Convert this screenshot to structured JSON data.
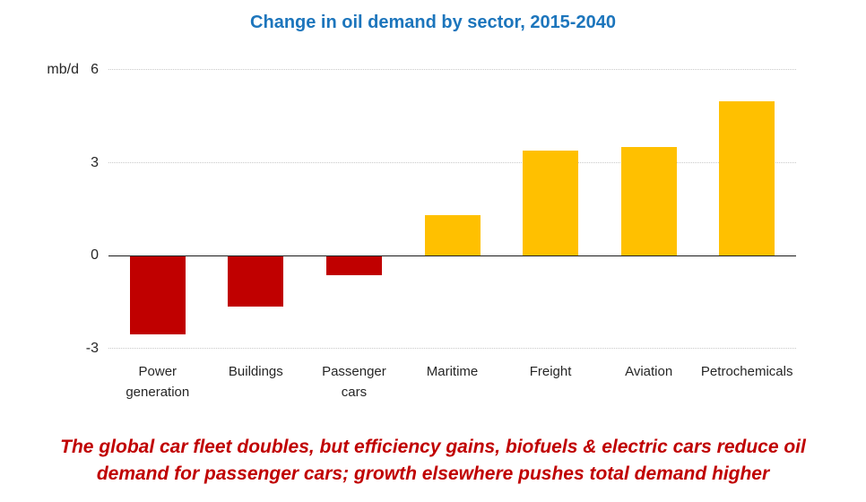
{
  "title": "Change in oil demand by sector, 2015-2040",
  "unit_label": "mb/d",
  "caption_lines": [
    "The global car fleet doubles, but efficiency gains, biofuels & electric cars reduce oil",
    "demand for passenger cars;  growth elsewhere pushes total demand higher"
  ],
  "colors": {
    "title_blue": "#1C75BC",
    "positive_bar": "#FFC000",
    "negative_bar": "#C00000",
    "caption_red": "#C00000",
    "axis_text": "#262626",
    "gridline": "#C9C9C9",
    "zero_line": "#1A1A1A"
  },
  "chart_data": {
    "type": "bar",
    "title": "Change in oil demand by sector, 2015-2040",
    "ylabel": "mb/d",
    "xlabel": "",
    "categories": [
      "Power generation",
      "Buildings",
      "Passenger cars",
      "Maritime",
      "Freight",
      "Aviation",
      "Petrochemicals"
    ],
    "category_lines": [
      [
        "Power",
        "generation"
      ],
      [
        "Buildings"
      ],
      [
        "Passenger",
        "cars"
      ],
      [
        "Maritime"
      ],
      [
        "Freight"
      ],
      [
        "Aviation"
      ],
      [
        "Petrochemicals"
      ]
    ],
    "values": [
      -2.5,
      -1.6,
      -0.6,
      1.3,
      3.4,
      3.5,
      5.0
    ],
    "yticks": [
      6,
      3,
      0,
      -3
    ],
    "ylim": [
      -3,
      6
    ],
    "grid": "horizontal dotted at 6, 3 and -3; solid axis line at 0",
    "legend": "none",
    "color_rule": "negative values dark red, positive values gold"
  }
}
